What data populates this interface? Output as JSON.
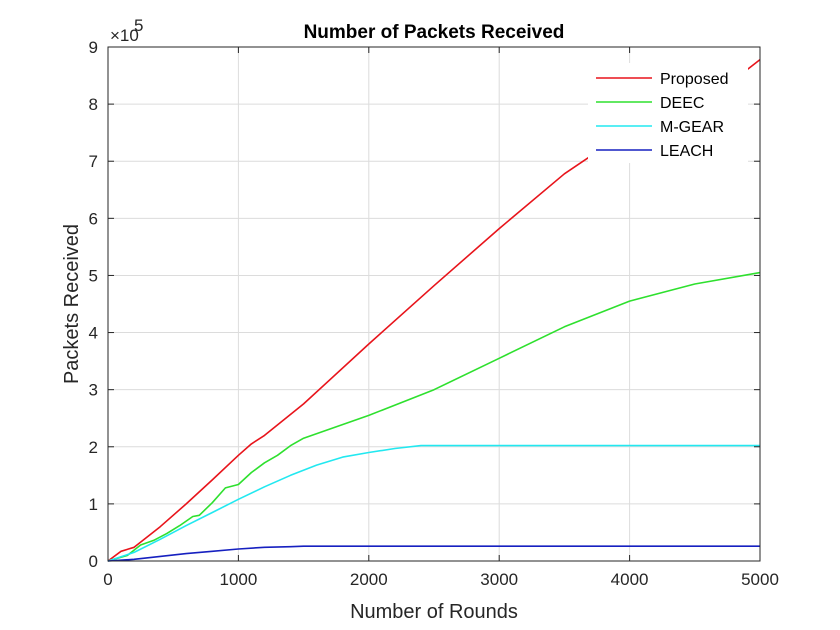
{
  "chart_data": {
    "type": "line",
    "title": "Number of Packets Received",
    "xlabel": "Number of Rounds",
    "ylabel": "Packets Received",
    "xlim": [
      0,
      5000
    ],
    "ylim": [
      0,
      9
    ],
    "xticks": [
      0,
      1000,
      2000,
      3000,
      4000,
      5000
    ],
    "yticks": [
      0,
      1,
      2,
      3,
      4,
      5,
      6,
      7,
      8,
      9
    ],
    "y_multiplier": {
      "base": "×10",
      "exponent": "5"
    },
    "grid": true,
    "legend_position": "top-right",
    "series": [
      {
        "name": "Proposed",
        "color": "#e8141b",
        "x": [
          0,
          100,
          200,
          400,
          600,
          800,
          1000,
          1100,
          1200,
          1500,
          2000,
          2500,
          3000,
          3500,
          4000,
          4500,
          4800,
          4900,
          5000
        ],
        "y": [
          0,
          0.17,
          0.24,
          0.6,
          1.0,
          1.42,
          1.85,
          2.05,
          2.2,
          2.75,
          3.8,
          4.82,
          5.82,
          6.78,
          7.55,
          8.25,
          8.45,
          8.6,
          8.78
        ]
      },
      {
        "name": "DEEC",
        "color": "#2ee02e",
        "x": [
          0,
          150,
          250,
          350,
          450,
          550,
          650,
          700,
          800,
          900,
          1000,
          1100,
          1200,
          1300,
          1400,
          1500,
          2000,
          2500,
          3000,
          3500,
          4000,
          4500,
          5000
        ],
        "y": [
          0,
          0.1,
          0.28,
          0.36,
          0.48,
          0.62,
          0.78,
          0.8,
          1.02,
          1.28,
          1.34,
          1.55,
          1.72,
          1.85,
          2.02,
          2.15,
          2.55,
          3.0,
          3.55,
          4.1,
          4.55,
          4.85,
          5.05
        ]
      },
      {
        "name": "M-GEAR",
        "color": "#22e8f0",
        "x": [
          0,
          200,
          400,
          600,
          800,
          1000,
          1200,
          1400,
          1600,
          1800,
          2000,
          2200,
          2400,
          2600,
          3000,
          4000,
          5000
        ],
        "y": [
          0,
          0.15,
          0.38,
          0.62,
          0.85,
          1.08,
          1.3,
          1.5,
          1.68,
          1.82,
          1.9,
          1.97,
          2.02,
          2.02,
          2.02,
          2.02,
          2.02
        ]
      },
      {
        "name": "LEACH",
        "color": "#1620c0",
        "x": [
          0,
          200,
          400,
          600,
          800,
          1000,
          1200,
          1400,
          1500,
          2000,
          3000,
          4000,
          5000
        ],
        "y": [
          0,
          0.03,
          0.08,
          0.13,
          0.17,
          0.21,
          0.24,
          0.25,
          0.26,
          0.26,
          0.26,
          0.26,
          0.26
        ]
      }
    ]
  }
}
